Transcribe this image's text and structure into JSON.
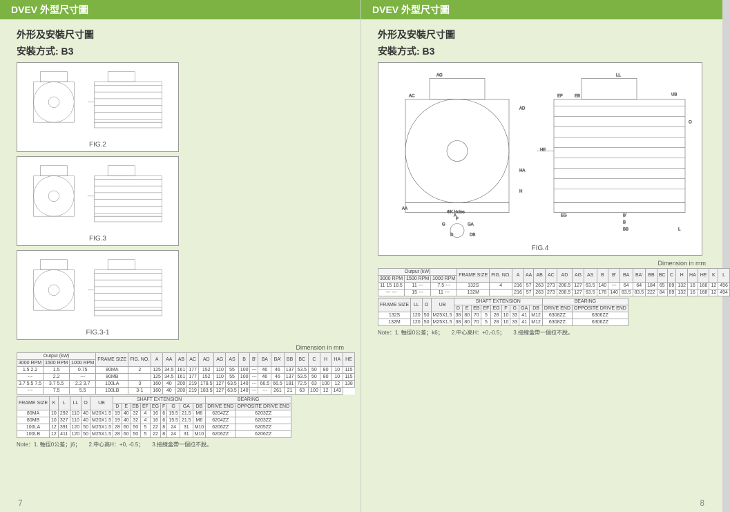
{
  "header_title": "DVEV  外型尺寸圖",
  "subtitle1": "外形及安裝尺寸圖",
  "subtitle2": "安裝方式: B3",
  "fig_labels": {
    "fig2": "FIG.2",
    "fig3": "FIG.3",
    "fig31": "FIG.3-1",
    "fig4": "FIG.4"
  },
  "dim_note": "Dimension in mm",
  "left_table1": {
    "headers_top": [
      "Output (kW)",
      "FRAME SIZE",
      "FIG. NO.",
      "A",
      "AA",
      "AB",
      "AC",
      "AD",
      "AG",
      "AS",
      "B",
      "B'",
      "BA",
      "BA'",
      "BB",
      "BC",
      "C",
      "H",
      "HA",
      "HE"
    ],
    "headers_sub": [
      "3000 RPM",
      "1500 RPM",
      "1000 RPM"
    ],
    "rows": [
      [
        "1.5 2.2",
        "1.5",
        "0.75",
        "80MA",
        "2",
        "125",
        "34.5",
        "161",
        "177",
        "152",
        "110",
        "55",
        "100",
        "---",
        "46",
        "46",
        "137",
        "53.5",
        "50",
        "80",
        "10",
        "115"
      ],
      [
        "---",
        "2.2",
        "---",
        "80MB",
        "",
        "125",
        "34.5",
        "161",
        "177",
        "152",
        "110",
        "55",
        "100",
        "---",
        "46",
        "46",
        "137",
        "53.5",
        "50",
        "80",
        "10",
        "115"
      ],
      [
        "3.7 5.5 7.5",
        "3.7 5.5",
        "2.2 3.7",
        "100LA",
        "3",
        "160",
        "40",
        "200",
        "219",
        "178.5",
        "127",
        "63.5",
        "140",
        "---",
        "66.5",
        "66.5",
        "181",
        "72.5",
        "63",
        "100",
        "12",
        "138"
      ],
      [
        "---",
        "7.5",
        "5.5",
        "100LB",
        "3-1",
        "160",
        "40",
        "200",
        "219",
        "183.5",
        "127",
        "63.5",
        "140",
        "---",
        "---",
        "261",
        "21",
        "63",
        "100",
        "12",
        "143"
      ]
    ]
  },
  "left_table2": {
    "headers_top": [
      "FRAME SIZE",
      "K",
      "L",
      "LL",
      "O",
      "UB",
      "SHAFT  EXTENSION",
      "BEARING"
    ],
    "headers_sub": [
      "D",
      "E",
      "EB",
      "EF",
      "EG",
      "F",
      "G",
      "GA",
      "DB",
      "DRIVE END",
      "OPPOSITE DRIVE END"
    ],
    "rows": [
      [
        "80MA",
        "10",
        "292",
        "110",
        "40",
        "M20X1.5",
        "19",
        "40",
        "32",
        "4",
        "16",
        "6",
        "15.5",
        "21.5",
        "M6",
        "6204ZZ",
        "6203ZZ"
      ],
      [
        "80MB",
        "10",
        "327",
        "110",
        "40",
        "M20X1.5",
        "19",
        "40",
        "32",
        "4",
        "16",
        "6",
        "15.5",
        "21.5",
        "M6",
        "6204ZZ",
        "6203ZZ"
      ],
      [
        "100LA",
        "12",
        "391",
        "120",
        "50",
        "M25X1.5",
        "28",
        "60",
        "50",
        "5",
        "22",
        "8",
        "24",
        "31",
        "M10",
        "6206ZZ",
        "6205ZZ"
      ],
      [
        "100LB",
        "12",
        "411",
        "120",
        "50",
        "M25X1.5",
        "28",
        "60",
        "50",
        "5",
        "22",
        "8",
        "24",
        "31",
        "M10",
        "6206ZZ",
        "6206ZZ"
      ]
    ]
  },
  "right_table1": {
    "headers_top": [
      "Output (kW)",
      "FRAME SIZE",
      "FIG. NO.",
      "A",
      "AA",
      "AB",
      "AC",
      "AD",
      "AG",
      "AS",
      "B",
      "B'",
      "BA",
      "BA'",
      "BB",
      "BC",
      "C",
      "H",
      "HA",
      "HE",
      "K",
      "L"
    ],
    "headers_sub": [
      "3000 RPM",
      "1500 RPM",
      "1000 RPM"
    ],
    "rows": [
      [
        "11 15 18.5",
        "11 ---",
        "7.5 ---",
        "132S",
        "4",
        "216",
        "57",
        "263",
        "273",
        "208.5",
        "127",
        "63.5",
        "140",
        "---",
        "64",
        "64",
        "184",
        "65",
        "89",
        "132",
        "16",
        "168",
        "12",
        "456"
      ],
      [
        "--- ---",
        "15 ---",
        "11 ---",
        "132M",
        "",
        "216",
        "57",
        "263",
        "273",
        "208.5",
        "127",
        "63.5",
        "178",
        "140",
        "83.5",
        "83.5",
        "222",
        "84",
        "89",
        "132",
        "16",
        "168",
        "12",
        "494"
      ]
    ]
  },
  "right_table2": {
    "headers_top": [
      "FRAME SIZE",
      "LL",
      "O",
      "UB",
      "SHAFT  EXTENSION",
      "BEARING"
    ],
    "headers_sub": [
      "D",
      "E",
      "EB",
      "EF",
      "EG",
      "F",
      "G",
      "GA",
      "DB",
      "DRIVE END",
      "OPPOSITE DRIVE END"
    ],
    "rows": [
      [
        "132S",
        "120",
        "50",
        "M25X1.5",
        "38",
        "80",
        "70",
        "5",
        "28",
        "10",
        "33",
        "41",
        "M12",
        "6308ZZ",
        "6306ZZ"
      ],
      [
        "132M",
        "120",
        "50",
        "M25X1.5",
        "38",
        "80",
        "70",
        "5",
        "28",
        "10",
        "33",
        "41",
        "M12",
        "6308ZZ",
        "6306ZZ"
      ]
    ]
  },
  "footnote_left": "Note：1. 軸徑0公差；j6；　　2.中心高H：+0, -0.5；　　3.接線盒帶一個拉不脫。",
  "footnote_right": "Note：1. 軸徑0公差；k6；　　2.中心高H：+0,-0.5；　　3.接線盒帶一個拉不脫。",
  "page_left": "7",
  "page_right": "8",
  "colors": {
    "header_bg": "#7cb342",
    "page_bg": "#e8f0d8",
    "border": "#aaaaaa",
    "text": "#444444"
  }
}
